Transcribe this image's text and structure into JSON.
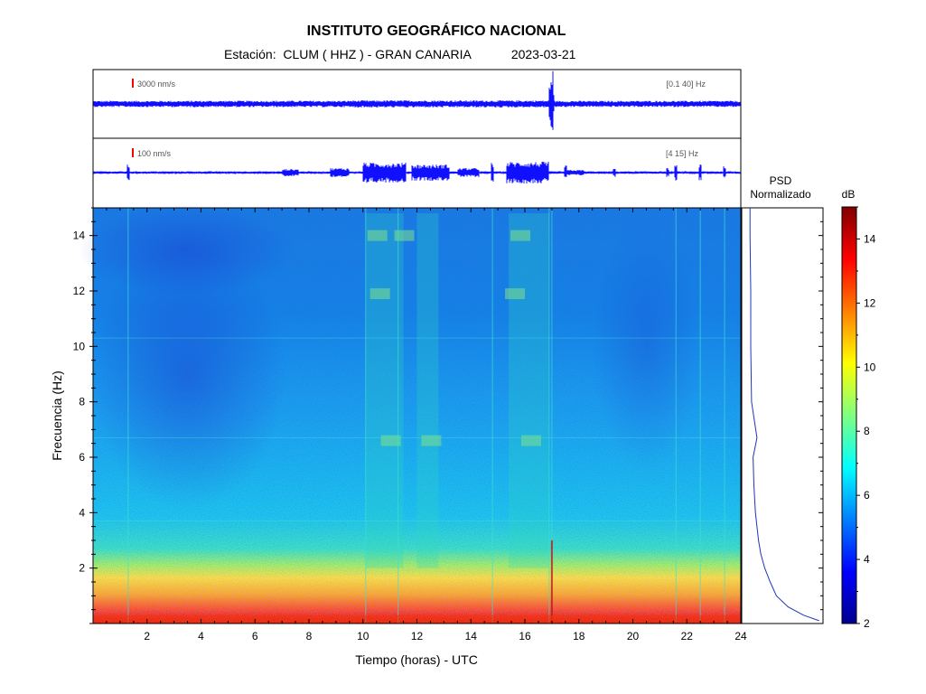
{
  "header": {
    "title": "INSTITUTO GEOGRÁFICO NACIONAL",
    "station_prefix": "Estación:",
    "station": "CLUM ( HHZ ) - GRAN CANARIA",
    "date": "2023-03-21"
  },
  "traces": [
    {
      "amplitude_label": "3000 nm/s",
      "filter_label": "[0.1 40] Hz"
    },
    {
      "amplitude_label": "100 nm/s",
      "filter_label": "[4 15] Hz"
    }
  ],
  "psd": {
    "title_line1": "PSD",
    "title_line2": "Normalizado"
  },
  "colorbar": {
    "unit_label": "dB",
    "ticks": [
      2,
      4,
      6,
      8,
      10,
      12,
      14
    ],
    "range": [
      2,
      15
    ]
  },
  "colors": {
    "trace": "#1010ff",
    "scale_marker": "#ff0000",
    "psd_line": "#2233bb"
  },
  "chart_data": {
    "type": "heatmap",
    "title": "INSTITUTO GEOGRÁFICO NACIONAL",
    "xlabel": "Tiempo (horas) - UTC",
    "ylabel": "Frecuencia  (Hz)",
    "xlim": [
      0,
      24
    ],
    "ylim": [
      0,
      15
    ],
    "x_ticks": [
      2,
      4,
      6,
      8,
      10,
      12,
      14,
      16,
      18,
      20,
      22,
      24
    ],
    "y_ticks": [
      2,
      4,
      6,
      8,
      10,
      12,
      14
    ],
    "colorbar_label": "dB",
    "colorbar_range": [
      2,
      15
    ],
    "color_scale": "jet",
    "notable_events_hours": [
      1.3,
      10.1,
      11.3,
      16.9,
      17.0,
      21.6
    ],
    "active_bands_hours": [
      [
        10.1,
        11.5
      ],
      [
        12.0,
        12.8
      ],
      [
        15.4,
        16.9
      ]
    ],
    "psd_profile": {
      "freq_hz": [
        0.1,
        0.3,
        0.6,
        1,
        1.5,
        2,
        2.5,
        3,
        4,
        5,
        6,
        6.7,
        8,
        10,
        12,
        14,
        15
      ],
      "normalized": [
        0.95,
        0.75,
        0.55,
        0.4,
        0.32,
        0.25,
        0.2,
        0.17,
        0.13,
        0.11,
        0.1,
        0.15,
        0.08,
        0.07,
        0.07,
        0.06,
        0.06
      ]
    }
  }
}
